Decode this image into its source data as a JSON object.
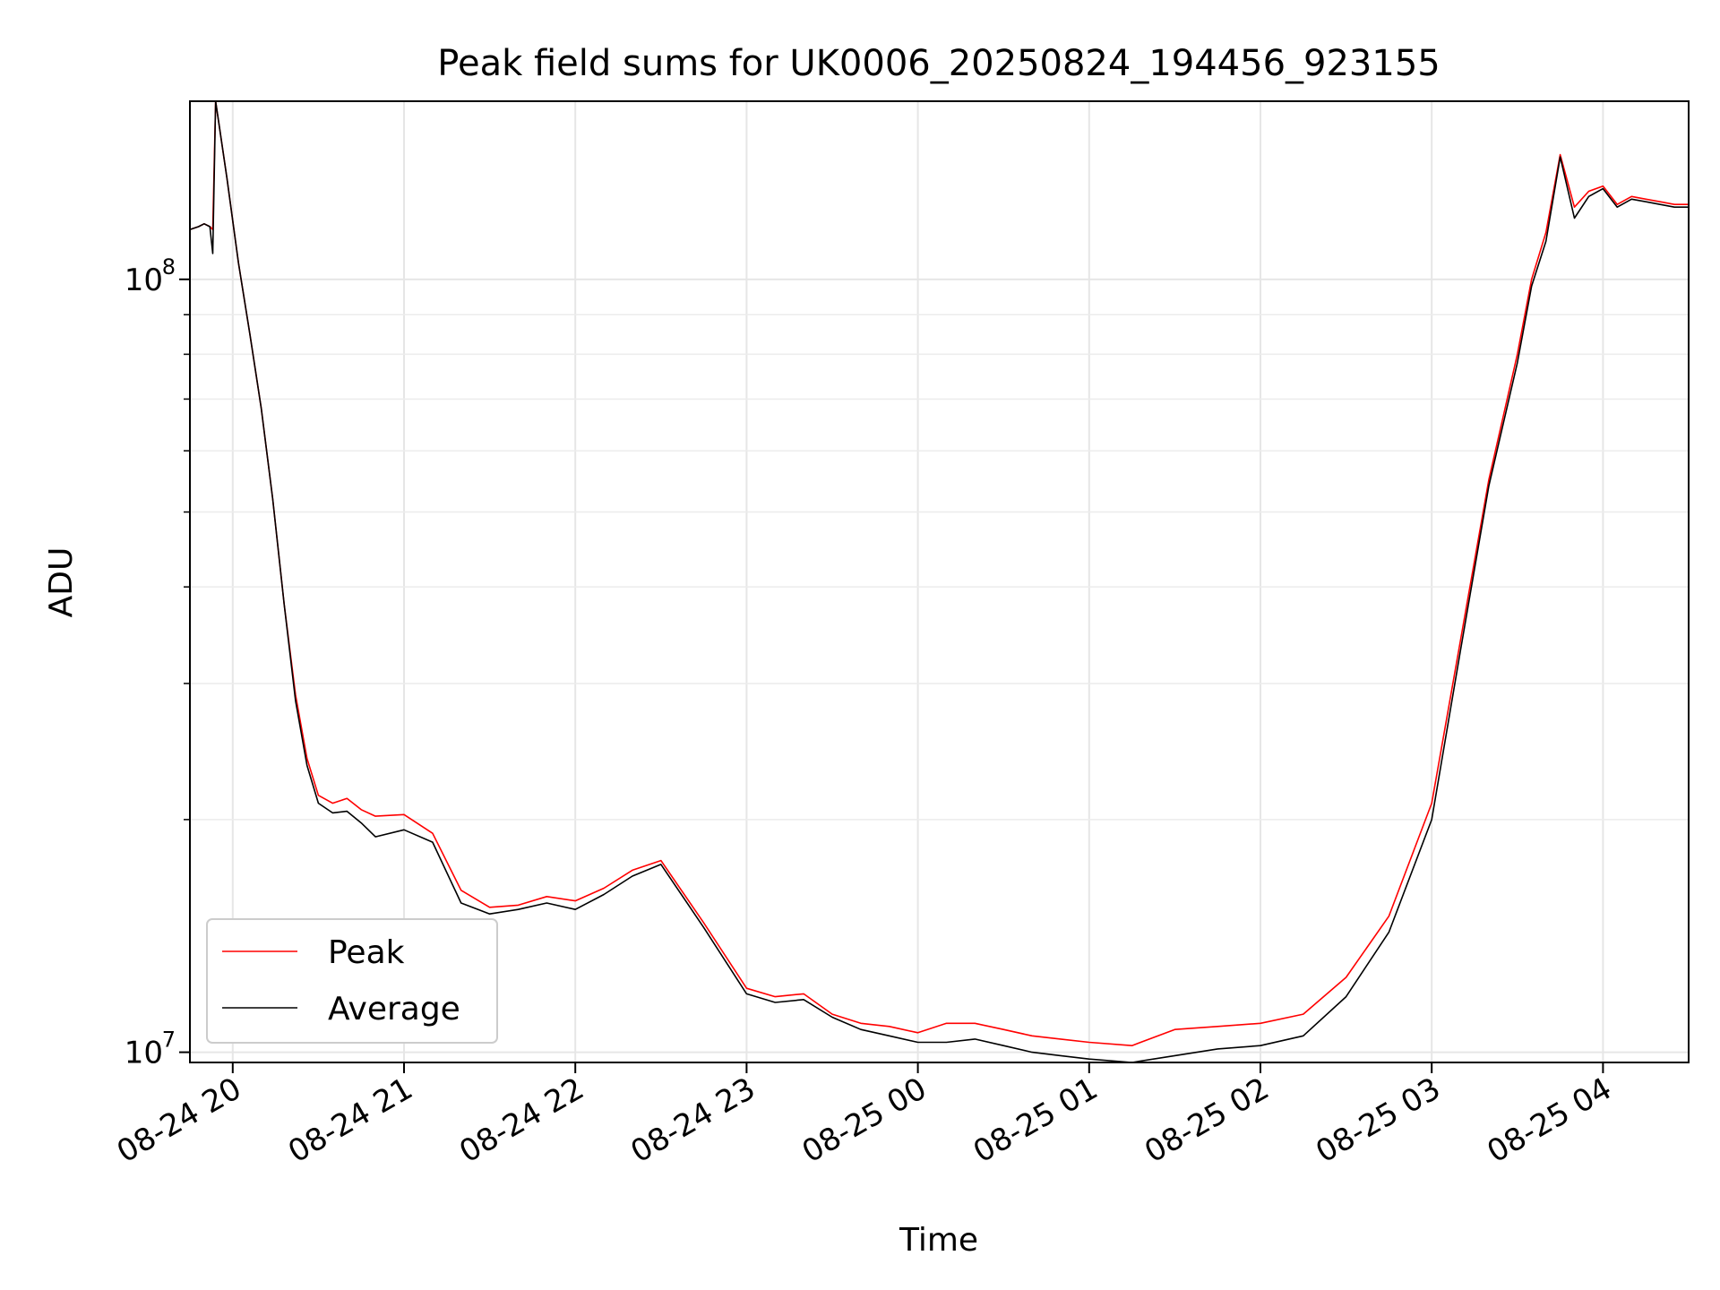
{
  "chart_data": {
    "type": "line",
    "title": "Peak field sums for UK0006_20250824_194456_923155",
    "xlabel": "Time",
    "ylabel": "ADU",
    "yscale": "log",
    "xlim": [
      "2025-08-24 19:45",
      "2025-08-25 04:30"
    ],
    "ylim": [
      9700000,
      170000000
    ],
    "grid": true,
    "legend_position": "lower left",
    "x_ticks": [
      "08-24 20",
      "08-24 21",
      "08-24 22",
      "08-24 23",
      "08-25 00",
      "08-25 01",
      "08-25 02",
      "08-25 03",
      "08-25 04"
    ],
    "y_ticks": [
      {
        "value": 10000000,
        "label": "10",
        "exponent": "7"
      },
      {
        "value": 100000000,
        "label": "10",
        "exponent": "8"
      }
    ],
    "x": [
      "2025-08-24 19:45",
      "2025-08-24 19:48",
      "2025-08-24 19:50",
      "2025-08-24 19:52",
      "2025-08-24 19:53",
      "2025-08-24 19:54",
      "2025-08-24 19:58",
      "2025-08-24 20:02",
      "2025-08-24 20:06",
      "2025-08-24 20:10",
      "2025-08-24 20:14",
      "2025-08-24 20:18",
      "2025-08-24 20:22",
      "2025-08-24 20:26",
      "2025-08-24 20:30",
      "2025-08-24 20:35",
      "2025-08-24 20:40",
      "2025-08-24 20:45",
      "2025-08-24 20:50",
      "2025-08-24 21:00",
      "2025-08-24 21:10",
      "2025-08-24 21:20",
      "2025-08-24 21:30",
      "2025-08-24 21:40",
      "2025-08-24 21:50",
      "2025-08-24 22:00",
      "2025-08-24 22:10",
      "2025-08-24 22:20",
      "2025-08-24 22:30",
      "2025-08-24 22:45",
      "2025-08-24 23:00",
      "2025-08-24 23:10",
      "2025-08-24 23:20",
      "2025-08-24 23:30",
      "2025-08-24 23:40",
      "2025-08-24 23:50",
      "2025-08-25 00:00",
      "2025-08-25 00:10",
      "2025-08-25 00:20",
      "2025-08-25 00:30",
      "2025-08-25 00:40",
      "2025-08-25 00:50",
      "2025-08-25 01:00",
      "2025-08-25 01:15",
      "2025-08-25 01:30",
      "2025-08-25 01:45",
      "2025-08-25 02:00",
      "2025-08-25 02:15",
      "2025-08-25 02:30",
      "2025-08-25 02:45",
      "2025-08-25 03:00",
      "2025-08-25 03:10",
      "2025-08-25 03:20",
      "2025-08-25 03:30",
      "2025-08-25 03:35",
      "2025-08-25 03:40",
      "2025-08-25 03:45",
      "2025-08-25 03:50",
      "2025-08-25 03:55",
      "2025-08-25 04:00",
      "2025-08-25 04:05",
      "2025-08-25 04:10",
      "2025-08-25 04:15",
      "2025-08-25 04:20",
      "2025-08-25 04:25",
      "2025-08-25 04:30"
    ],
    "series": [
      {
        "name": "Peak",
        "color": "#ff0000",
        "values": [
          116000000,
          117000000,
          118000000,
          117000000,
          116000000,
          170000000,
          135000000,
          105000000,
          85000000,
          68000000,
          52000000,
          38000000,
          29000000,
          24000000,
          21500000,
          21000000,
          21300000,
          20600000,
          20200000,
          20300000,
          19200000,
          16200000,
          15400000,
          15500000,
          15900000,
          15700000,
          16300000,
          17200000,
          17700000,
          14700000,
          12100000,
          11800000,
          11900000,
          11200000,
          10900000,
          10800000,
          10600000,
          10900000,
          10900000,
          10700000,
          10500000,
          10400000,
          10300000,
          10200000,
          10700000,
          10800000,
          10900000,
          11200000,
          12500000,
          15000000,
          21000000,
          34000000,
          55000000,
          80000000,
          100000000,
          115000000,
          145000000,
          124000000,
          130000000,
          132000000,
          125000000,
          128000000,
          127000000,
          126000000,
          125000000,
          125000000
        ]
      },
      {
        "name": "Average",
        "color": "#000000",
        "values": [
          116000000,
          117000000,
          118000000,
          117000000,
          108000000,
          170000000,
          135000000,
          105000000,
          85000000,
          68000000,
          52000000,
          38000000,
          28500000,
          23500000,
          21000000,
          20400000,
          20500000,
          19800000,
          19000000,
          19400000,
          18700000,
          15600000,
          15100000,
          15300000,
          15600000,
          15300000,
          16000000,
          16900000,
          17500000,
          14500000,
          11900000,
          11600000,
          11700000,
          11100000,
          10700000,
          10500000,
          10300000,
          10300000,
          10400000,
          10200000,
          10000000,
          9900000,
          9800000,
          9700000,
          9900000,
          10100000,
          10200000,
          10500000,
          11800000,
          14300000,
          20000000,
          33000000,
          54000000,
          78000000,
          98000000,
          112000000,
          144000000,
          120000000,
          128000000,
          131000000,
          124000000,
          127000000,
          126000000,
          125000000,
          124000000,
          124000000
        ]
      }
    ]
  }
}
